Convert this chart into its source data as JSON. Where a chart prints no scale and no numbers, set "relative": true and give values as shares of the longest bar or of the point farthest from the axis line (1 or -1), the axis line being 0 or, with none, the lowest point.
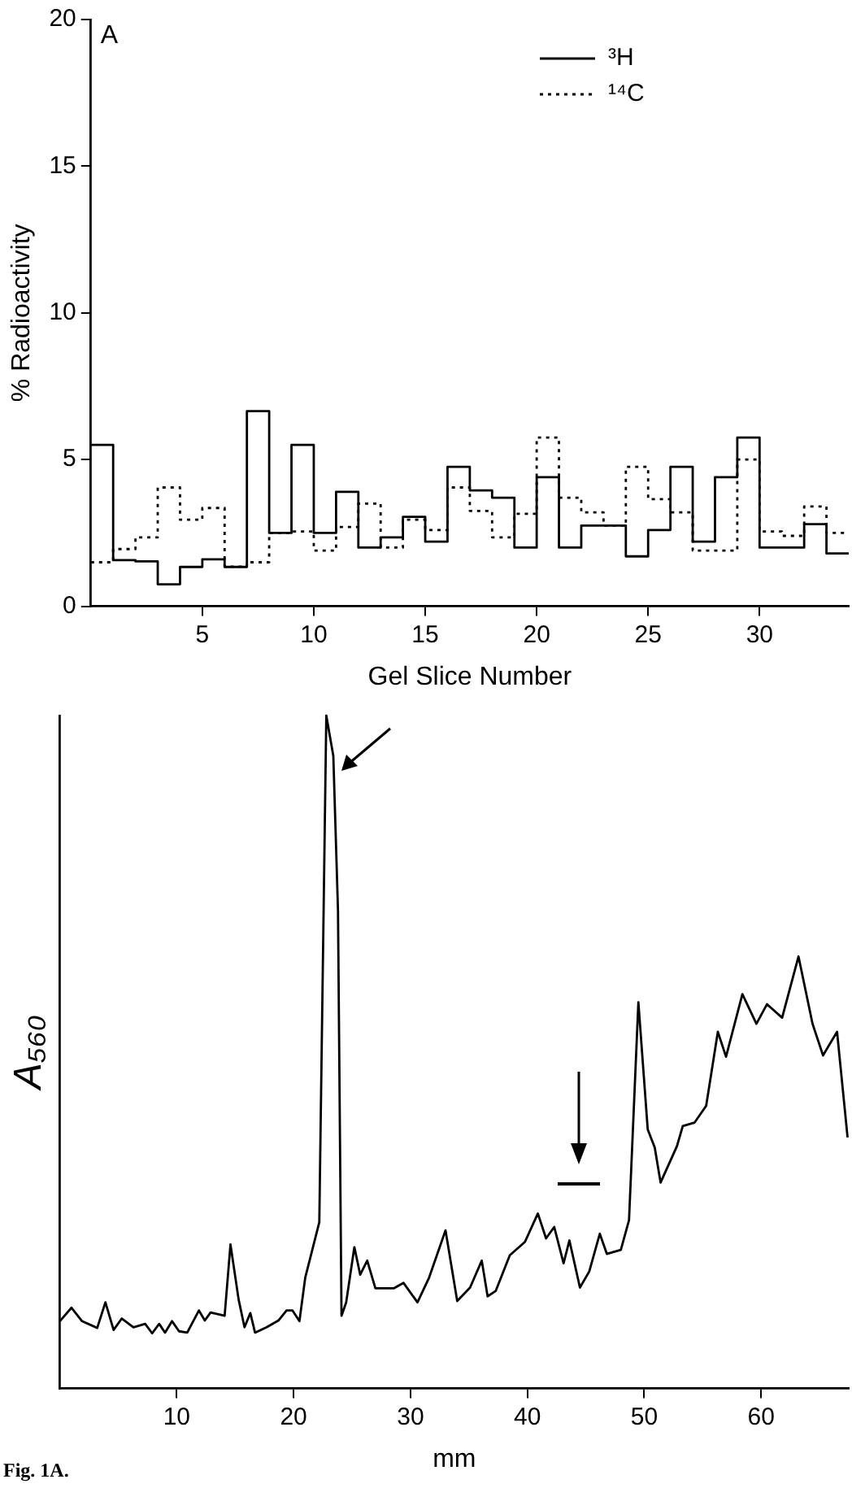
{
  "chart_data": [
    {
      "type": "step",
      "title": "A",
      "xlabel": "Gel Slice Number",
      "ylabel": "% Radioactivity",
      "x": [
        0,
        1,
        2,
        3,
        4,
        5,
        6,
        7,
        8,
        9,
        10,
        11,
        12,
        13,
        14,
        15,
        16,
        17,
        18,
        19,
        20,
        21,
        22,
        23,
        24,
        25,
        26,
        27,
        28,
        29,
        30,
        31,
        32,
        33,
        34
      ],
      "series": [
        {
          "name": "³H",
          "color": "#000000",
          "line_style": "solid",
          "values": [
            5.5,
            1.57,
            1.53,
            0.75,
            1.34,
            1.6,
            1.34,
            6.65,
            2.5,
            5.5,
            2.5,
            3.9,
            2.0,
            2.35,
            3.05,
            2.2,
            4.75,
            3.95,
            3.7,
            2.0,
            4.4,
            2.0,
            2.75,
            2.75,
            1.7,
            2.6,
            4.75,
            2.2,
            4.4,
            5.75,
            2.0,
            2.0,
            2.8,
            1.8,
            1.8
          ]
        },
        {
          "name": "¹⁴C",
          "color": "#000000",
          "line_style": "dotted",
          "values": [
            1.5,
            1.95,
            2.35,
            4.05,
            2.95,
            3.35,
            1.35,
            1.5,
            2.5,
            2.55,
            1.9,
            2.7,
            3.5,
            2.0,
            2.95,
            2.6,
            4.05,
            3.25,
            2.35,
            3.15,
            5.75,
            3.7,
            3.2,
            2.75,
            4.75,
            3.65,
            3.2,
            1.9,
            1.9,
            5.0,
            2.55,
            2.4,
            3.4,
            2.5,
            2.5
          ]
        }
      ],
      "xlim": [
        0,
        34
      ],
      "xticks": [
        5,
        10,
        15,
        20,
        25,
        30
      ],
      "ylim": [
        0,
        20
      ],
      "yticks": [
        0,
        5,
        10,
        15,
        20
      ],
      "grid": false,
      "legend": "top right"
    },
    {
      "type": "line",
      "relative": true,
      "xlabel": "mm",
      "ylabel": "A₅₆₀",
      "annotations": [
        "Fig. 1A."
      ],
      "x": [
        0,
        1.0,
        1.9,
        3.2,
        3.9,
        4.6,
        5.3,
        6.3,
        7.3,
        7.9,
        8.5,
        9.0,
        9.6,
        10.2,
        10.9,
        11.9,
        12.4,
        12.9,
        14.1,
        14.6,
        15.3,
        15.8,
        16.3,
        16.7,
        17.7,
        18.7,
        19.4,
        19.9,
        20.5,
        21.0,
        22.2,
        22.8,
        23.4,
        23.8,
        24.1,
        24.5,
        25.2,
        25.7,
        26.3,
        27.0,
        28.6,
        29.4,
        30.6,
        31.6,
        33.0,
        34.0,
        35.1,
        36.1,
        36.6,
        37.3,
        38.5,
        39.8,
        40.9,
        41.6,
        42.3,
        43.1,
        43.6,
        44.5,
        45.3,
        46.2,
        46.8,
        48.0,
        48.7,
        49.5,
        50.3,
        50.9,
        51.4,
        52.8,
        53.3,
        54.3,
        55.3,
        56.3,
        57.0,
        58.4,
        59.6,
        60.5,
        61.8,
        63.2,
        64.4,
        65.3,
        66.5,
        67.4
      ],
      "values": [
        0.1,
        0.12,
        0.1,
        0.09,
        0.128,
        0.087,
        0.104,
        0.091,
        0.096,
        0.082,
        0.096,
        0.083,
        0.1,
        0.085,
        0.083,
        0.116,
        0.101,
        0.113,
        0.108,
        0.214,
        0.132,
        0.091,
        0.112,
        0.083,
        0.091,
        0.101,
        0.116,
        0.116,
        0.1,
        0.165,
        0.247,
        1.0,
        0.94,
        0.71,
        0.108,
        0.128,
        0.21,
        0.169,
        0.19,
        0.149,
        0.149,
        0.157,
        0.128,
        0.165,
        0.235,
        0.13,
        0.15,
        0.19,
        0.137,
        0.145,
        0.198,
        0.218,
        0.26,
        0.223,
        0.24,
        0.186,
        0.22,
        0.15,
        0.174,
        0.23,
        0.2,
        0.206,
        0.25,
        0.574,
        0.385,
        0.358,
        0.306,
        0.36,
        0.39,
        0.395,
        0.42,
        0.53,
        0.493,
        0.586,
        0.542,
        0.571,
        0.551,
        0.642,
        0.542,
        0.495,
        0.53,
        0.373
      ],
      "color": "#000000",
      "xlim": [
        0,
        67.5
      ],
      "xticks": [
        10,
        20,
        30,
        40,
        50,
        60
      ],
      "grid": false,
      "legend": false,
      "marker": "none"
    }
  ]
}
